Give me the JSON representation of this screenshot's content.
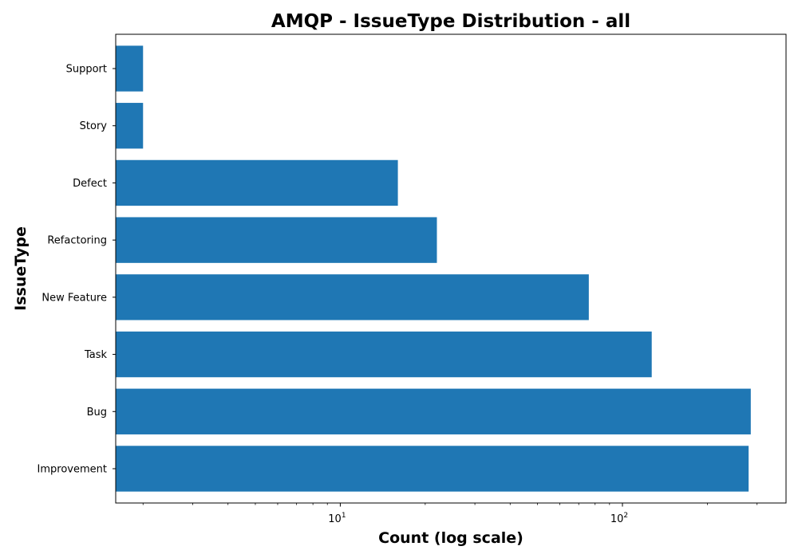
{
  "chart_data": {
    "type": "bar",
    "orientation": "horizontal",
    "title": "AMQP - IssueType Distribution - all",
    "xlabel": "Count (log scale)",
    "ylabel": "IssueType",
    "x_scale": "log",
    "xlim": [
      1.6,
      380
    ],
    "x_ticks": [
      {
        "base": "10",
        "exp": "1",
        "value": 10
      },
      {
        "base": "10",
        "exp": "2",
        "value": 100
      }
    ],
    "categories": [
      "Improvement",
      "Bug",
      "Task",
      "New Feature",
      "Refactoring",
      "Defect",
      "Story",
      "Support"
    ],
    "values": [
      280,
      285,
      127,
      76,
      22,
      16,
      2,
      2
    ],
    "bar_color": "#1f77b4",
    "grid": false
  }
}
